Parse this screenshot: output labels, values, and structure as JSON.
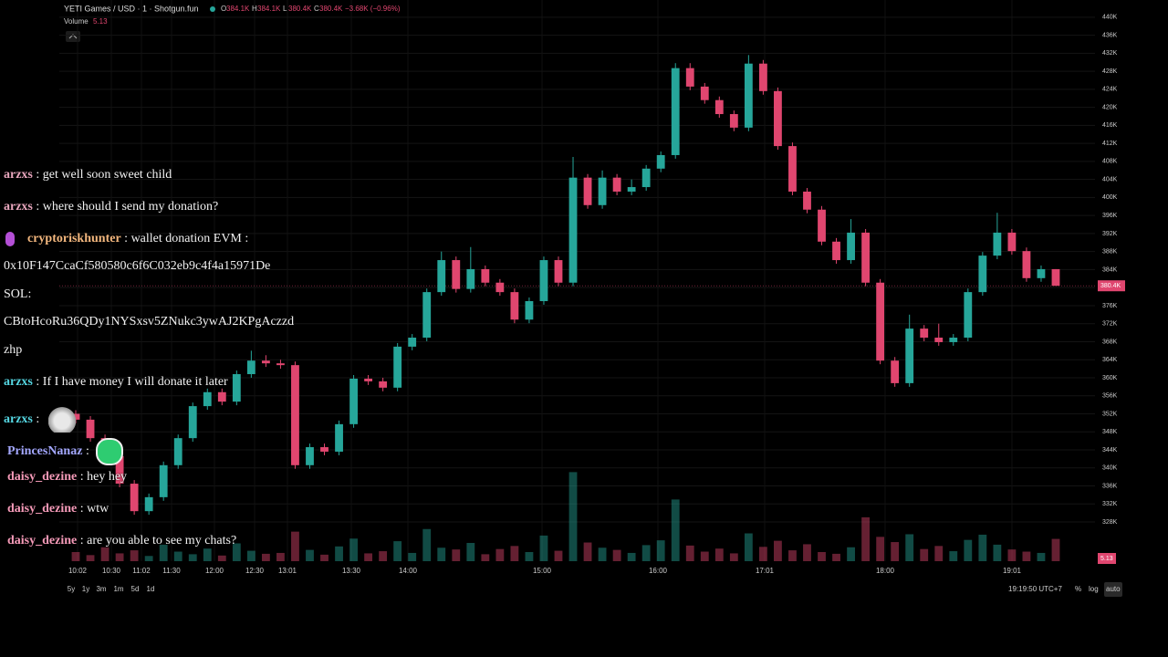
{
  "header": {
    "symbol": "YETI Games / USD · 1 · Shotgun.fun",
    "ohlc": [
      {
        "label": "O",
        "value": "384.1K"
      },
      {
        "label": "H",
        "value": "384.1K"
      },
      {
        "label": "L",
        "value": "380.4K"
      },
      {
        "label": "C",
        "value": "380.4K"
      }
    ],
    "change": "−3.68K (−0.96%)",
    "volume_label": "Volume"
  },
  "chart_data": {
    "type": "candlestick",
    "up_color": "#26a69a",
    "down_color": "#e0466f",
    "ylim": [
      319.3,
      442.8
    ],
    "yticks": [
      {
        "value": 440,
        "label": "440K"
      },
      {
        "value": 436,
        "label": "436K"
      },
      {
        "value": 432,
        "label": "432K"
      },
      {
        "value": 428,
        "label": "428K"
      },
      {
        "value": 424,
        "label": "424K"
      },
      {
        "value": 420,
        "label": "420K"
      },
      {
        "value": 416,
        "label": "416K"
      },
      {
        "value": 412,
        "label": "412K"
      },
      {
        "value": 408,
        "label": "408K"
      },
      {
        "value": 404,
        "label": "404K"
      },
      {
        "value": 400,
        "label": "400K"
      },
      {
        "value": 396,
        "label": "396K"
      },
      {
        "value": 392,
        "label": "392K"
      },
      {
        "value": 388,
        "label": "388K"
      },
      {
        "value": 384,
        "label": "384K"
      },
      {
        "value": 380,
        "label": "380K"
      },
      {
        "value": 376,
        "label": "376K"
      },
      {
        "value": 372,
        "label": "372K"
      },
      {
        "value": 368,
        "label": "368K"
      },
      {
        "value": 364,
        "label": "364K"
      },
      {
        "value": 360,
        "label": "360K"
      },
      {
        "value": 356,
        "label": "356K"
      },
      {
        "value": 352,
        "label": "352K"
      },
      {
        "value": 348,
        "label": "348K"
      },
      {
        "value": 344,
        "label": "344K"
      },
      {
        "value": 340,
        "label": "340K"
      },
      {
        "value": 336,
        "label": "336K"
      },
      {
        "value": 332,
        "label": "332K"
      },
      {
        "value": 328,
        "label": "328K"
      }
    ],
    "last_price": {
      "value": 380.4,
      "label": "380.4K"
    },
    "time_labels": [
      "10:02",
      "10:30",
      "11:02",
      "11:30",
      "12:00",
      "12:30",
      "13:01",
      "13:30",
      "14:00",
      "15:00",
      "16:00",
      "17:01",
      "18:00",
      "19:01"
    ],
    "ohlc": [
      [
        352.0,
        352.8,
        349.9,
        350.7
      ],
      [
        350.7,
        351.5,
        345.8,
        346.6
      ],
      [
        346.6,
        347.4,
        341.8,
        342.6
      ],
      [
        342.6,
        343.4,
        335.7,
        336.5
      ],
      [
        336.5,
        337.3,
        329.6,
        330.4
      ],
      [
        330.4,
        334.3,
        329.6,
        333.5
      ],
      [
        333.5,
        341.4,
        332.7,
        340.6
      ],
      [
        340.6,
        347.4,
        339.8,
        346.6
      ],
      [
        346.6,
        354.5,
        345.8,
        353.7
      ],
      [
        353.7,
        357.6,
        352.9,
        356.8
      ],
      [
        356.8,
        357.6,
        353.9,
        354.7
      ],
      [
        354.7,
        361.6,
        353.9,
        360.8
      ],
      [
        360.8,
        366.0,
        360.0,
        363.8
      ],
      [
        363.8,
        365.0,
        362.4,
        363.2
      ],
      [
        363.2,
        364.0,
        362.0,
        362.8
      ],
      [
        362.8,
        363.6,
        339.8,
        340.6
      ],
      [
        340.6,
        345.4,
        339.8,
        344.6
      ],
      [
        344.6,
        345.4,
        342.8,
        343.6
      ],
      [
        343.6,
        350.5,
        342.8,
        349.7
      ],
      [
        349.7,
        360.6,
        348.9,
        359.8
      ],
      [
        359.8,
        360.6,
        358.4,
        359.2
      ],
      [
        359.2,
        360.0,
        357.0,
        357.8
      ],
      [
        357.8,
        367.7,
        357.0,
        366.9
      ],
      [
        366.9,
        369.7,
        366.1,
        368.9
      ],
      [
        368.9,
        379.8,
        368.1,
        379.0
      ],
      [
        379.0,
        388.0,
        378.2,
        386.1
      ],
      [
        386.1,
        386.9,
        378.9,
        379.7
      ],
      [
        379.7,
        389.0,
        378.9,
        384.1
      ],
      [
        384.1,
        384.9,
        380.3,
        381.1
      ],
      [
        381.1,
        381.9,
        378.2,
        379.0
      ],
      [
        379.0,
        379.8,
        372.1,
        372.9
      ],
      [
        372.9,
        377.8,
        372.1,
        377.0
      ],
      [
        377.0,
        386.9,
        376.2,
        386.1
      ],
      [
        386.1,
        386.9,
        380.3,
        381.1
      ],
      [
        381.1,
        409.0,
        380.3,
        404.4
      ],
      [
        404.4,
        405.2,
        397.5,
        398.3
      ],
      [
        398.3,
        406.0,
        397.5,
        404.4
      ],
      [
        404.4,
        405.2,
        400.5,
        401.3
      ],
      [
        401.3,
        404.0,
        400.5,
        402.3
      ],
      [
        402.3,
        407.2,
        401.5,
        406.4
      ],
      [
        406.4,
        410.2,
        405.6,
        409.4
      ],
      [
        409.4,
        429.8,
        408.6,
        428.7
      ],
      [
        428.7,
        429.8,
        423.8,
        424.6
      ],
      [
        424.6,
        425.4,
        420.8,
        421.6
      ],
      [
        421.6,
        422.4,
        417.7,
        418.5
      ],
      [
        418.5,
        419.3,
        414.7,
        415.5
      ],
      [
        415.5,
        431.6,
        414.7,
        429.7
      ],
      [
        429.7,
        430.5,
        422.8,
        423.6
      ],
      [
        423.6,
        424.4,
        410.6,
        411.4
      ],
      [
        411.4,
        412.2,
        400.5,
        401.3
      ],
      [
        401.3,
        402.1,
        396.5,
        397.3
      ],
      [
        397.3,
        398.1,
        389.4,
        390.2
      ],
      [
        390.2,
        391.0,
        385.3,
        386.1
      ],
      [
        386.1,
        395.2,
        385.3,
        392.2
      ],
      [
        392.2,
        393.0,
        380.3,
        381.1
      ],
      [
        381.1,
        381.9,
        363.0,
        363.8
      ],
      [
        363.8,
        364.6,
        358.0,
        358.8
      ],
      [
        358.8,
        374.0,
        358.0,
        370.9
      ],
      [
        370.9,
        371.7,
        368.1,
        368.9
      ],
      [
        368.9,
        372.0,
        367.1,
        367.9
      ],
      [
        367.9,
        369.7,
        367.1,
        368.9
      ],
      [
        368.9,
        379.8,
        368.1,
        379.0
      ],
      [
        379.0,
        387.9,
        378.2,
        387.1
      ],
      [
        387.1,
        396.6,
        386.3,
        392.2
      ],
      [
        392.2,
        393.0,
        387.3,
        388.1
      ],
      [
        388.1,
        388.9,
        381.3,
        382.1
      ],
      [
        382.1,
        384.9,
        381.3,
        384.1
      ],
      [
        384.1,
        384.1,
        380.4,
        380.4
      ]
    ],
    "volume": [
      2.1,
      1.4,
      3.2,
      1.8,
      2.5,
      1.2,
      3.8,
      2.2,
      1.6,
      2.9,
      1.3,
      4.1,
      2.4,
      1.7,
      1.9,
      6.8,
      2.6,
      1.5,
      3.4,
      5.2,
      1.8,
      2.3,
      4.6,
      1.9,
      7.4,
      3.1,
      2.7,
      4.2,
      1.6,
      2.8,
      3.5,
      2.1,
      5.9,
      2.4,
      20.5,
      4.3,
      3.1,
      2.6,
      1.9,
      3.7,
      4.8,
      14.2,
      3.6,
      2.2,
      2.9,
      1.8,
      6.4,
      3.3,
      4.7,
      2.5,
      3.9,
      2.1,
      1.7,
      3.2,
      10.1,
      5.6,
      4.4,
      6.2,
      2.8,
      3.5,
      2.3,
      4.9,
      6.1,
      3.8,
      2.7,
      2.2,
      1.9,
      5.13
    ],
    "vlim": [
      0,
      21
    ]
  },
  "chat": {
    "sep": ":",
    "lines": [
      {
        "user": "arzxs",
        "color": "#e8a6bd",
        "text": "get well soon sweet child"
      },
      {
        "user": "arzxs",
        "color": "#e8a6bd",
        "text": "where should I send my donation?"
      },
      {
        "user": "cryptoriskhunter",
        "color": "#f3b77e",
        "text": "wallet donation EVM :"
      },
      {
        "text": "0x10F147CcaCf580580c6f6C032eb9c4f4a15971De"
      },
      {
        "text": "SOL:"
      },
      {
        "text": "CBtoHcoRu36QDy1NYSxsv5ZNukc3ywAJ2KPgAczzd"
      },
      {
        "text": "zhp"
      },
      {
        "user": "arzxs",
        "color": "#55d6e2",
        "text": "If I have money I will donate it later"
      },
      {
        "user": "arzxs",
        "color": "#55d6e2",
        "text": ""
      },
      {
        "user": "PrincesNanaz",
        "color": "#a4a8ff",
        "text": ""
      },
      {
        "user": "daisy_dezine",
        "color": "#f59ab8",
        "text": "hey hey"
      },
      {
        "user": "daisy_dezine",
        "color": "#f59ab8",
        "text": "wtw"
      },
      {
        "user": "daisy_dezine",
        "color": "#f59ab8",
        "text": "are you able to see my chats?"
      }
    ]
  },
  "toolbar": {
    "ranges": [
      "5y",
      "1y",
      "3m",
      "1m",
      "5d",
      "1d"
    ],
    "clock": "19:19:50 UTC+7",
    "percent": "%",
    "log": "log",
    "auto": "auto"
  }
}
